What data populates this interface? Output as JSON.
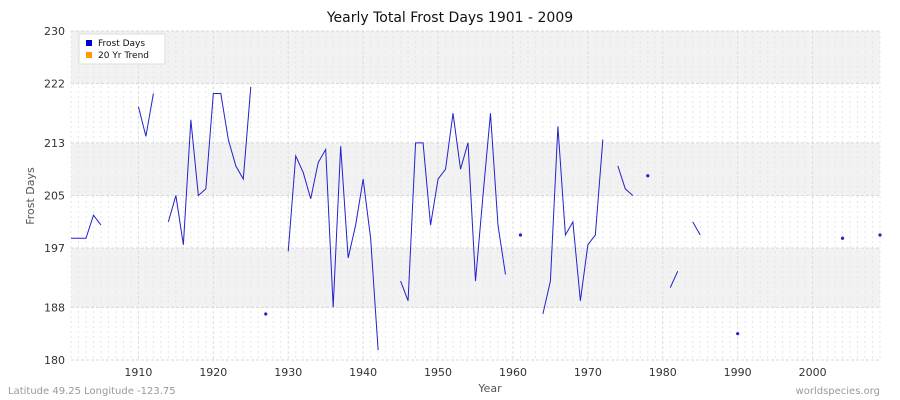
{
  "chart_data": {
    "type": "line",
    "title": "Yearly Total Frost Days 1901 - 2009",
    "xlabel": "Year",
    "ylabel": "Frost Days",
    "xlim": [
      1901,
      2009
    ],
    "ylim": [
      180,
      230
    ],
    "yticks": [
      180,
      188,
      197,
      205,
      213,
      222,
      230
    ],
    "xticks": [
      1910,
      1920,
      1930,
      1940,
      1950,
      1960,
      1970,
      1980,
      1990,
      2000
    ],
    "grid": true,
    "legend_position": "top-left",
    "legend": [
      {
        "label": "Frost Days",
        "color": "#0000cc"
      },
      {
        "label": "20 Yr Trend",
        "color": "#ff9900"
      }
    ],
    "series": [
      {
        "name": "Frost Days",
        "color": "#2222cc",
        "points": [
          [
            1901,
            198.5
          ],
          [
            1902,
            198.5
          ],
          [
            1903,
            198.5
          ],
          [
            1904,
            202
          ],
          [
            1905,
            200.5
          ],
          [
            1906,
            null
          ],
          [
            1907,
            null
          ],
          [
            1908,
            null
          ],
          [
            1909,
            null
          ],
          [
            1910,
            218.5
          ],
          [
            1911,
            214
          ],
          [
            1912,
            220.5
          ],
          [
            1913,
            null
          ],
          [
            1914,
            201
          ],
          [
            1915,
            205
          ],
          [
            1916,
            197.5
          ],
          [
            1917,
            216.5
          ],
          [
            1918,
            205
          ],
          [
            1919,
            206
          ],
          [
            1920,
            220.5
          ],
          [
            1921,
            220.5
          ],
          [
            1922,
            213.5
          ],
          [
            1923,
            209.5
          ],
          [
            1924,
            207.5
          ],
          [
            1925,
            221.5
          ],
          [
            1926,
            null
          ],
          [
            1927,
            187
          ],
          [
            1928,
            null
          ],
          [
            1929,
            null
          ],
          [
            1930,
            196.5
          ],
          [
            1931,
            211
          ],
          [
            1932,
            208.5
          ],
          [
            1933,
            204.5
          ],
          [
            1934,
            210
          ],
          [
            1935,
            212
          ],
          [
            1936,
            188
          ],
          [
            1937,
            212.5
          ],
          [
            1938,
            195.5
          ],
          [
            1939,
            200.5
          ],
          [
            1940,
            207.5
          ],
          [
            1941,
            198.5
          ],
          [
            1942,
            181.5
          ],
          [
            1943,
            null
          ],
          [
            1944,
            null
          ],
          [
            1945,
            192
          ],
          [
            1946,
            189
          ],
          [
            1947,
            213
          ],
          [
            1948,
            213
          ],
          [
            1949,
            200.5
          ],
          [
            1950,
            207.5
          ],
          [
            1951,
            209
          ],
          [
            1952,
            217.5
          ],
          [
            1953,
            209
          ],
          [
            1954,
            213
          ],
          [
            1955,
            192
          ],
          [
            1956,
            205
          ],
          [
            1957,
            217.5
          ],
          [
            1958,
            200.5
          ],
          [
            1959,
            193
          ],
          [
            1960,
            null
          ],
          [
            1961,
            199
          ],
          [
            1962,
            null
          ],
          [
            1963,
            null
          ],
          [
            1964,
            187
          ],
          [
            1965,
            192
          ],
          [
            1966,
            215.5
          ],
          [
            1967,
            199
          ],
          [
            1968,
            201
          ],
          [
            1969,
            189
          ],
          [
            1970,
            197.5
          ],
          [
            1971,
            199
          ],
          [
            1972,
            213.5
          ],
          [
            1973,
            null
          ],
          [
            1974,
            209.5
          ],
          [
            1975,
            206
          ],
          [
            1976,
            205
          ],
          [
            1977,
            null
          ],
          [
            1978,
            208
          ],
          [
            1979,
            null
          ],
          [
            1980,
            null
          ],
          [
            1981,
            191
          ],
          [
            1982,
            193.5
          ],
          [
            1983,
            null
          ],
          [
            1984,
            201
          ],
          [
            1985,
            199
          ],
          [
            1986,
            null
          ],
          [
            1987,
            null
          ],
          [
            1988,
            null
          ],
          [
            1989,
            null
          ],
          [
            1990,
            184
          ],
          [
            1991,
            null
          ],
          [
            1992,
            null
          ],
          [
            1993,
            null
          ],
          [
            1994,
            null
          ],
          [
            1995,
            null
          ],
          [
            1996,
            null
          ],
          [
            1997,
            null
          ],
          [
            1998,
            null
          ],
          [
            1999,
            null
          ],
          [
            2000,
            null
          ],
          [
            2001,
            null
          ],
          [
            2002,
            null
          ],
          [
            2003,
            null
          ],
          [
            2004,
            198.5
          ],
          [
            2005,
            null
          ],
          [
            2006,
            null
          ],
          [
            2007,
            null
          ],
          [
            2008,
            null
          ],
          [
            2009,
            199
          ]
        ]
      },
      {
        "name": "20 Yr Trend",
        "color": "#ff9900",
        "points": []
      }
    ]
  },
  "footer": {
    "left": "Latitude 49.25 Longitude -123.75",
    "right": "worldspecies.org"
  }
}
